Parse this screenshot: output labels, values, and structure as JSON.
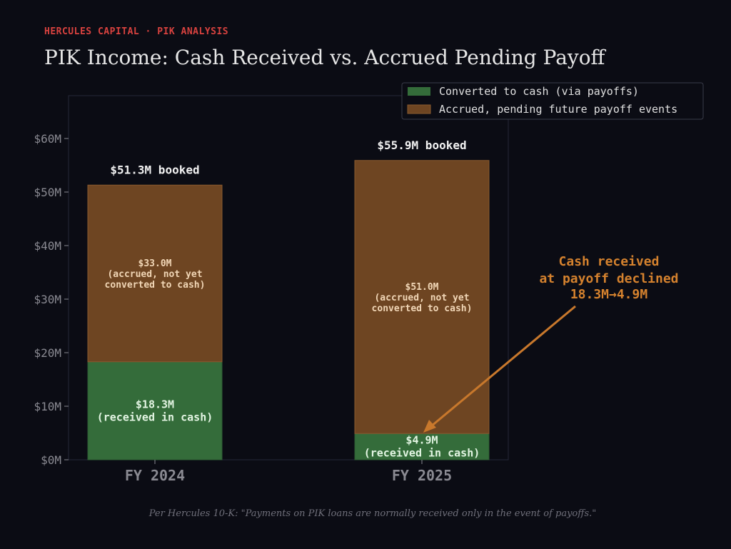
{
  "header": {
    "kicker": "HERCULES CAPITAL · PIK ANALYSIS",
    "title": "PIK Income: Cash Received vs. Accrued Pending Payoff"
  },
  "footnote": "Per Hercules 10-K: \"Payments on PIK loans are normally received only in the event of payoffs.\"",
  "colors": {
    "converted": "#346c3a",
    "accrued": "#6e4522",
    "accent": "#d5822e",
    "kicker": "#d8423f"
  },
  "chart_data": {
    "type": "bar",
    "stacked": true,
    "categories": [
      "FY 2024",
      "FY 2025"
    ],
    "series": [
      {
        "name": "Converted to cash (via payoffs)",
        "values": [
          18.3,
          4.9
        ],
        "labels": [
          [
            "$18.3M",
            "(received in cash)"
          ],
          [
            "$4.9M",
            "(received in cash)"
          ]
        ]
      },
      {
        "name": "Accrued, pending future payoff events",
        "values": [
          33.0,
          51.0
        ],
        "labels": [
          [
            "$33.0M",
            "(accrued, not yet",
            "converted to cash)"
          ],
          [
            "$51.0M",
            "(accrued, not yet",
            "converted to cash)"
          ]
        ]
      }
    ],
    "totals": [
      51.3,
      55.9
    ],
    "total_labels": [
      "$51.3M booked",
      "$55.9M booked"
    ],
    "ylim": [
      0,
      68
    ],
    "yticks": [
      0,
      10,
      20,
      30,
      40,
      50,
      60
    ],
    "ytick_labels": [
      "$0M",
      "$10M",
      "$20M",
      "$30M",
      "$40M",
      "$50M",
      "$60M"
    ],
    "legend_position": "top-right",
    "grid": false,
    "annotation": {
      "lines": [
        "Cash received",
        "at payoff declined"
      ],
      "detail": "18.3M→4.9M"
    }
  }
}
